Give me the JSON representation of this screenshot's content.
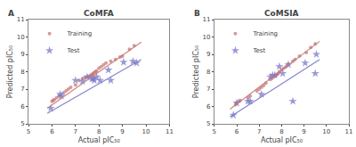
{
  "chart_data": [
    {
      "type": "scatter",
      "title": "CoMFA",
      "annotations": [
        "A"
      ],
      "xlabel": "Actual pIC₅₀",
      "ylabel": "Predicted pIC₅₀",
      "xlim": [
        5,
        11
      ],
      "ylim": [
        5,
        11
      ],
      "xticks": [
        5,
        6,
        7,
        8,
        9,
        10,
        11
      ],
      "yticks": [
        5,
        6,
        7,
        8,
        9,
        10,
        11
      ],
      "grid": false,
      "legend": "upper left",
      "series": [
        {
          "name": "Training",
          "type": "scatter",
          "marker": "circle",
          "color": "#c87878",
          "x": [
            6.0,
            6.05,
            6.1,
            6.2,
            6.3,
            6.5,
            6.6,
            6.7,
            6.8,
            7.0,
            7.15,
            7.3,
            7.4,
            7.5,
            7.6,
            7.65,
            7.7,
            7.75,
            7.8,
            7.85,
            7.9,
            8.0,
            8.1,
            8.2,
            8.3,
            8.5,
            8.7,
            8.9,
            9.0,
            9.3,
            9.5
          ],
          "values": [
            6.3,
            6.35,
            6.4,
            6.5,
            6.6,
            6.8,
            6.9,
            7.0,
            7.1,
            7.25,
            7.5,
            7.6,
            7.65,
            7.7,
            7.75,
            7.8,
            7.85,
            7.9,
            7.95,
            8.0,
            8.05,
            8.2,
            8.3,
            8.4,
            8.5,
            8.6,
            8.7,
            8.85,
            8.9,
            9.3,
            9.5
          ]
        },
        {
          "name": "Test",
          "type": "scatter",
          "marker": "star",
          "color": "#7878c8",
          "x": [
            5.95,
            6.35,
            6.4,
            7.0,
            7.3,
            7.5,
            7.7,
            7.75,
            7.8,
            7.9,
            8.05,
            8.4,
            8.5,
            9.05,
            9.45,
            9.6
          ],
          "values": [
            5.9,
            6.7,
            6.6,
            7.5,
            7.45,
            7.7,
            7.6,
            7.6,
            7.5,
            7.7,
            7.5,
            8.1,
            7.5,
            8.55,
            8.6,
            8.5
          ]
        },
        {
          "type": "line",
          "color": "#c87878",
          "x": [
            5.8,
            9.8
          ],
          "values": [
            5.9,
            9.7
          ]
        },
        {
          "type": "line",
          "color": "#7878c8",
          "x": [
            5.8,
            9.8
          ],
          "values": [
            5.6,
            8.7
          ]
        }
      ]
    },
    {
      "type": "scatter",
      "title": "CoMSIA",
      "annotations": [
        "B"
      ],
      "xlabel": "Actual pIC₅₀",
      "ylabel": "Predicted pIC₅₀",
      "xlim": [
        5,
        11
      ],
      "ylim": [
        5,
        11
      ],
      "xticks": [
        5,
        6,
        7,
        8,
        9,
        10,
        11
      ],
      "yticks": [
        5,
        6,
        7,
        8,
        9,
        10,
        11
      ],
      "grid": false,
      "legend": "upper left",
      "series": [
        {
          "name": "Training",
          "type": "scatter",
          "marker": "circle",
          "color": "#c87878",
          "x": [
            5.95,
            6.0,
            6.1,
            6.15,
            6.5,
            6.6,
            6.9,
            7.0,
            7.1,
            7.2,
            7.3,
            7.5,
            7.6,
            7.7,
            7.75,
            7.8,
            7.85,
            7.9,
            8.0,
            8.1,
            8.2,
            8.3,
            8.5,
            8.6,
            8.8,
            9.1,
            9.3,
            9.5
          ],
          "values": [
            6.1,
            6.2,
            6.3,
            6.35,
            6.5,
            6.6,
            6.9,
            7.0,
            7.1,
            7.2,
            7.35,
            7.55,
            7.65,
            7.75,
            7.8,
            7.85,
            7.9,
            8.0,
            8.1,
            8.2,
            8.3,
            8.45,
            8.6,
            8.7,
            8.9,
            9.1,
            9.4,
            9.6
          ]
        },
        {
          "name": "Test",
          "type": "scatter",
          "marker": "star",
          "color": "#7878c8",
          "x": [
            5.85,
            6.0,
            6.5,
            6.6,
            7.1,
            7.5,
            7.6,
            7.7,
            7.9,
            8.05,
            8.3,
            8.5,
            9.05,
            9.5,
            9.55
          ],
          "values": [
            5.5,
            6.2,
            6.3,
            6.3,
            6.7,
            7.7,
            7.8,
            7.8,
            8.3,
            7.9,
            8.4,
            6.3,
            8.5,
            7.9,
            9.0
          ]
        },
        {
          "type": "line",
          "color": "#c87878",
          "x": [
            5.7,
            9.7
          ],
          "values": [
            5.85,
            9.75
          ]
        },
        {
          "type": "line",
          "color": "#7878c8",
          "x": [
            5.7,
            9.7
          ],
          "values": [
            5.4,
            8.7
          ]
        }
      ]
    }
  ]
}
